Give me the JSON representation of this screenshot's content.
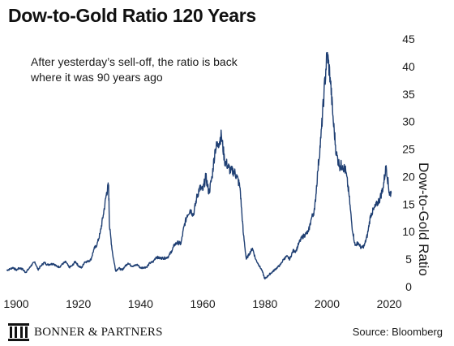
{
  "title": "Dow-to-Gold Ratio 120 Years",
  "annotation": "After yesterday’s sell-off, the ratio is back where it was 90 years ago",
  "brand": {
    "name": "BONNER & PARTNERS",
    "logo_icon": "columns-building-icon"
  },
  "source": "Source: Bloomberg",
  "chart_data": {
    "type": "line",
    "title": "Dow-to-Gold Ratio 120 Years",
    "xlabel": "",
    "ylabel": "Dow-to-Gold Ratio",
    "xlim": [
      1900,
      2021
    ],
    "ylim": [
      0,
      45
    ],
    "x_ticks": [
      1900,
      1920,
      1940,
      1960,
      1980,
      2000,
      2020
    ],
    "y_ticks": [
      0,
      5,
      10,
      15,
      20,
      25,
      30,
      35,
      40,
      45
    ],
    "y_axis_position": "right",
    "grid": false,
    "line_color": "#1f3f73",
    "series": [
      {
        "name": "",
        "x": [
          1897,
          1898,
          1899,
          1900,
          1901,
          1902,
          1903,
          1904,
          1905,
          1906,
          1907,
          1908,
          1909,
          1910,
          1911,
          1912,
          1913,
          1914,
          1915,
          1916,
          1917,
          1918,
          1919,
          1920,
          1921,
          1922,
          1923,
          1924,
          1925,
          1926,
          1927,
          1928,
          1929,
          1929.7,
          1930,
          1931,
          1932,
          1933,
          1934,
          1935,
          1936,
          1937,
          1938,
          1939,
          1940,
          1941,
          1942,
          1943,
          1944,
          1945,
          1946,
          1947,
          1948,
          1949,
          1950,
          1951,
          1952,
          1953,
          1954,
          1955,
          1956,
          1957,
          1958,
          1959,
          1960,
          1961,
          1962,
          1963,
          1964,
          1965,
          1966,
          1967,
          1968,
          1969,
          1970,
          1971,
          1972,
          1973,
          1974,
          1975,
          1976,
          1977,
          1978,
          1979,
          1980,
          1981,
          1982,
          1983,
          1984,
          1985,
          1986,
          1987,
          1988,
          1989,
          1990,
          1991,
          1992,
          1993,
          1994,
          1995,
          1996,
          1997,
          1998,
          1999,
          2000,
          2001,
          2002,
          2003,
          2004,
          2005,
          2006,
          2007,
          2008,
          2009,
          2010,
          2011,
          2012,
          2013,
          2014,
          2015,
          2016,
          2017,
          2018,
          2019,
          2020,
          2020.6
        ],
        "values": [
          3.0,
          3.2,
          3.5,
          3.0,
          3.4,
          3.2,
          2.6,
          3.2,
          4.0,
          4.5,
          3.1,
          3.8,
          4.4,
          4.0,
          4.1,
          4.2,
          3.7,
          3.6,
          4.2,
          4.5,
          3.5,
          3.8,
          4.6,
          3.8,
          3.4,
          4.5,
          4.6,
          4.9,
          6.8,
          7.7,
          9.7,
          13.0,
          16.8,
          18.5,
          11.0,
          6.0,
          2.9,
          3.4,
          3.0,
          3.7,
          4.3,
          3.8,
          3.8,
          4.0,
          3.4,
          3.5,
          3.6,
          4.3,
          4.5,
          5.4,
          5.2,
          5.2,
          5.2,
          5.5,
          6.5,
          7.7,
          8.0,
          7.8,
          11.0,
          13.0,
          14.0,
          13.0,
          16.0,
          18.0,
          17.5,
          20.0,
          17.0,
          20.0,
          25.0,
          26.0,
          27.5,
          23.0,
          22.0,
          21.0,
          21.0,
          20.0,
          18.0,
          10.0,
          5.0,
          6.0,
          7.0,
          5.0,
          4.0,
          3.0,
          1.4,
          2.0,
          2.5,
          3.0,
          3.5,
          4.0,
          5.0,
          5.5,
          5.0,
          6.5,
          6.5,
          8.0,
          9.0,
          9.5,
          10.0,
          12.5,
          14.0,
          21.0,
          27.0,
          35.0,
          42.5,
          38.0,
          30.0,
          24.0,
          22.0,
          22.0,
          21.0,
          17.0,
          11.0,
          7.5,
          8.0,
          7.0,
          7.5,
          9.5,
          13.0,
          14.0,
          15.0,
          16.0,
          18.0,
          22.0,
          17.0,
          17.0
        ]
      }
    ]
  }
}
